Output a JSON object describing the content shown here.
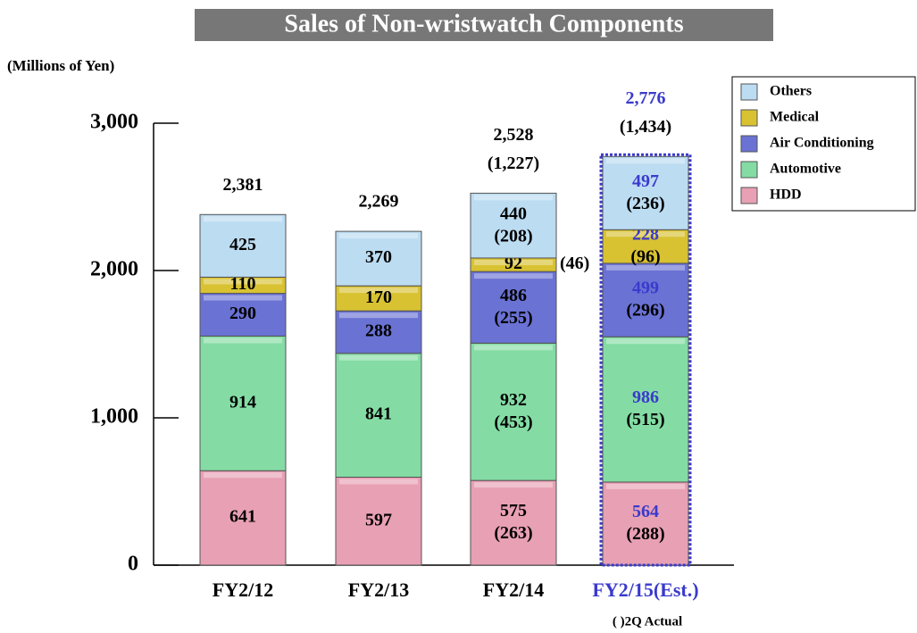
{
  "chart_data": {
    "type": "stacked_bar",
    "title": "Sales of Non-wristwatch Components",
    "y_label": "(Millions of Yen)",
    "footnote": "(   )2Q Actual",
    "categories": [
      "FY2/12",
      "FY2/13",
      "FY2/14",
      "FY2/15(Est.)"
    ],
    "ylim": [
      0,
      3000
    ],
    "yticks": [
      0,
      {
        "value": 1000,
        "label": "1,000"
      },
      {
        "value": 2000,
        "label": "2,000"
      },
      {
        "value": 3000,
        "label": "3,000"
      }
    ],
    "highlight": {
      "index": 3,
      "color": "#3a3acc"
    },
    "series": [
      {
        "name": "HDD",
        "color": "#e8a0b4",
        "values": [
          641,
          597,
          575,
          564
        ],
        "q2_values": [
          null,
          null,
          263,
          288
        ],
        "q2_value_labels": [
          null,
          null,
          "(263)",
          "(288)"
        ]
      },
      {
        "name": "Automotive",
        "color": "#84dca4",
        "values": [
          914,
          841,
          932,
          986
        ],
        "q2_values": [
          null,
          null,
          453,
          515
        ],
        "q2_value_labels": [
          null,
          null,
          "(453)",
          "(515)"
        ]
      },
      {
        "name": "Air Conditioning",
        "color": "#6a72d4",
        "values": [
          290,
          288,
          486,
          499
        ],
        "q2_values": [
          null,
          null,
          255,
          296
        ],
        "q2_value_labels": [
          null,
          null,
          "(255)",
          "(296)"
        ]
      },
      {
        "name": "Medical",
        "color": "#d8c232",
        "values": [
          110,
          170,
          92,
          228
        ],
        "q2_values": [
          null,
          null,
          46,
          96
        ],
        "q2_value_labels": [
          null,
          null,
          "(46)",
          "(96)"
        ]
      },
      {
        "name": "Others",
        "color": "#bcdcf2",
        "values": [
          425,
          370,
          440,
          497
        ],
        "q2_values": [
          null,
          null,
          208,
          236
        ],
        "q2_value_labels": [
          null,
          null,
          "(208)",
          "(236)"
        ]
      }
    ],
    "totals": [
      2381,
      2269,
      2528,
      2776
    ],
    "total_labels": [
      "2,381",
      "2,269",
      "2,528",
      "2,776"
    ],
    "q2_totals": [
      null,
      null,
      1227,
      1434
    ],
    "q2_total_labels": [
      null,
      null,
      "(1,227)",
      "(1,434)"
    ]
  }
}
